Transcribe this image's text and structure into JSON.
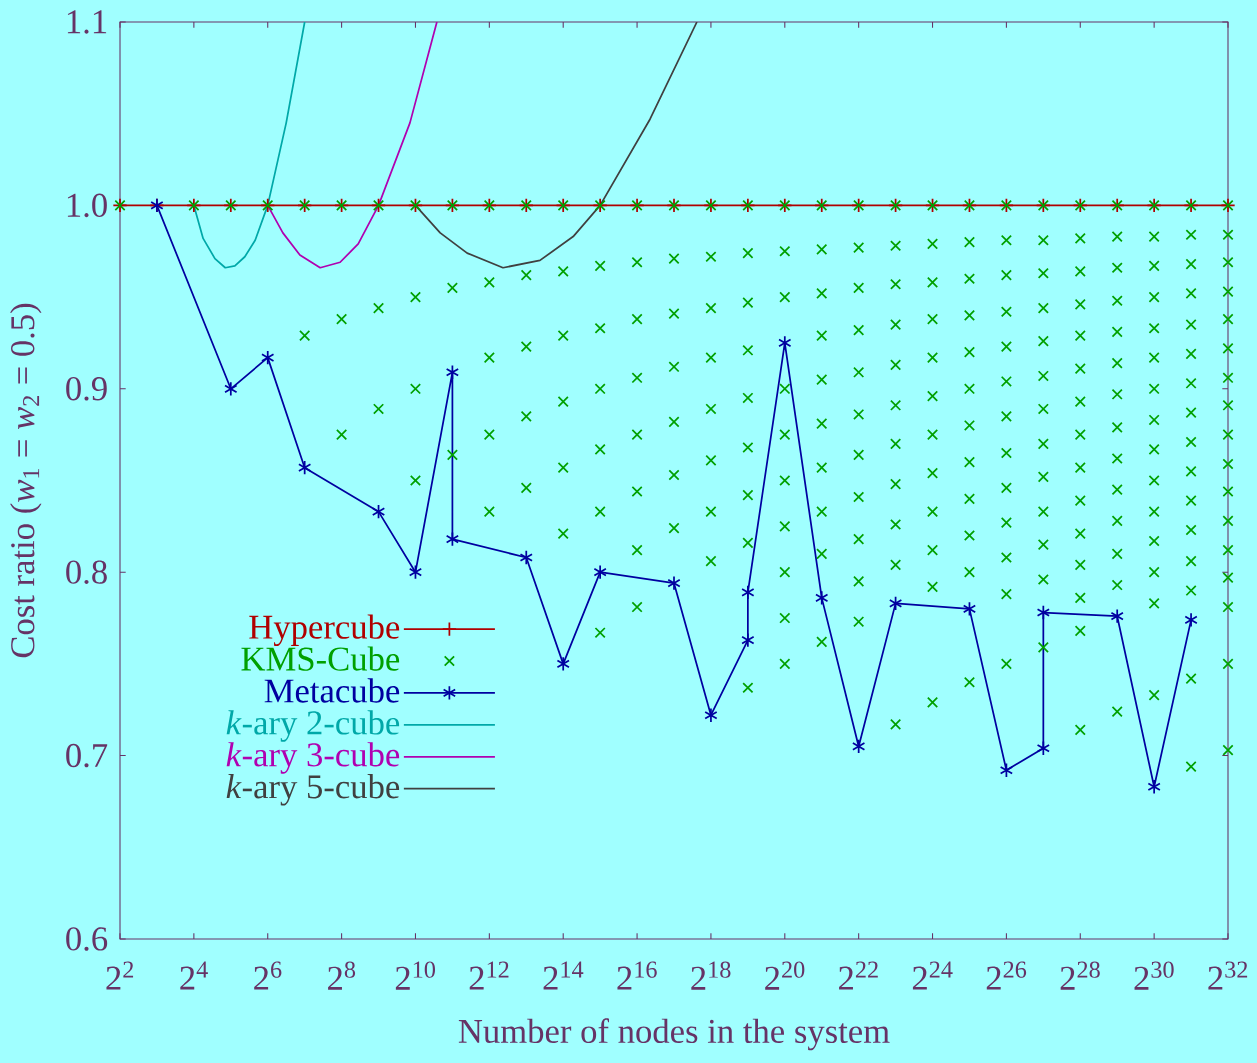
{
  "chart_data": {
    "type": "line",
    "xlabel": "Number of nodes in the system",
    "ylabel": "Cost ratio (*w*$_{1}$ = *w*$_{2}$ = 0.5)",
    "log": "x",
    "xlim": [
      4,
      4294967296
    ],
    "ylim": [
      0.6,
      1.1
    ],
    "xticks": [
      {
        "value": 4,
        "label": "2$^{2}$"
      },
      {
        "value": 16,
        "label": "2$^{4}$"
      },
      {
        "value": 64,
        "label": "2$^{6}$"
      },
      {
        "value": 256,
        "label": "2$^{8}$"
      },
      {
        "value": 1024,
        "label": "2$^{10}$"
      },
      {
        "value": 4096,
        "label": "2$^{12}$"
      },
      {
        "value": 16384,
        "label": "2$^{14}$"
      },
      {
        "value": 65536,
        "label": "2$^{16}$"
      },
      {
        "value": 262144,
        "label": "2$^{18}$"
      },
      {
        "value": 1048576,
        "label": "2$^{20}$"
      },
      {
        "value": 4194304,
        "label": "2$^{22}$"
      },
      {
        "value": 16777216,
        "label": "2$^{24}$"
      },
      {
        "value": 67108864,
        "label": "2$^{26}$"
      },
      {
        "value": 268435456,
        "label": "2$^{28}$"
      },
      {
        "value": 1073741824,
        "label": "2$^{30}$"
      },
      {
        "value": 4294967296,
        "label": "2$^{32}$"
      }
    ],
    "yticks": [
      {
        "value": 0.6,
        "label": "0.6"
      },
      {
        "value": 0.7,
        "label": "0.7"
      },
      {
        "value": 0.8,
        "label": "0.8"
      },
      {
        "value": 0.9,
        "label": "0.9"
      },
      {
        "value": 1,
        "label": "1.0"
      },
      {
        "value": 1.1,
        "label": "1.1"
      }
    ],
    "legend": "bottom left",
    "series": [
      {
        "name": "Hypercube",
        "color": "#b00000",
        "marker": "plus",
        "x": [
          4,
          8,
          16,
          32,
          64,
          128,
          256,
          512,
          1024,
          2048,
          4096,
          8192,
          16384,
          32768,
          65536,
          131072,
          262144,
          524288,
          1048576,
          2097152,
          4194304,
          8388608,
          16777216,
          33554432,
          67108864,
          134217728,
          268435456,
          536870912,
          1073741824,
          2147483648,
          4294967296
        ],
        "values": [
          1,
          1,
          1,
          1,
          1,
          1,
          1,
          1,
          1,
          1,
          1,
          1,
          1,
          1,
          1,
          1,
          1,
          1,
          1,
          1,
          1,
          1,
          1,
          1,
          1,
          1,
          1,
          1,
          1,
          1,
          1
        ]
      },
      {
        "name": "KMS-Cube",
        "color": "#00a000",
        "type": "scatter",
        "marker": "cross",
        "x": [
          4,
          16,
          32,
          64,
          128,
          128,
          256,
          256,
          256,
          512,
          512,
          512,
          1024,
          1024,
          1024,
          1024,
          2048,
          2048,
          2048,
          4096,
          4096,
          4096,
          4096,
          4096,
          8192,
          8192,
          8192,
          8192,
          8192,
          16384,
          16384,
          16384,
          16384,
          16384,
          16384,
          32768,
          32768,
          32768,
          32768,
          32768,
          32768,
          32768,
          65536,
          65536,
          65536,
          65536,
          65536,
          65536,
          65536,
          65536,
          131072,
          131072,
          131072,
          131072,
          131072,
          131072,
          131072,
          262144,
          262144,
          262144,
          262144,
          262144,
          262144,
          262144,
          262144,
          524288,
          524288,
          524288,
          524288,
          524288,
          524288,
          524288,
          524288,
          524288,
          1048576,
          1048576,
          1048576,
          1048576,
          1048576,
          1048576,
          1048576,
          1048576,
          1048576,
          1048576,
          2097152,
          2097152,
          2097152,
          2097152,
          2097152,
          2097152,
          2097152,
          2097152,
          2097152,
          2097152,
          4194304,
          4194304,
          4194304,
          4194304,
          4194304,
          4194304,
          4194304,
          4194304,
          4194304,
          4194304,
          4194304,
          8388608,
          8388608,
          8388608,
          8388608,
          8388608,
          8388608,
          8388608,
          8388608,
          8388608,
          8388608,
          8388608,
          16777216,
          16777216,
          16777216,
          16777216,
          16777216,
          16777216,
          16777216,
          16777216,
          16777216,
          16777216,
          16777216,
          16777216,
          33554432,
          33554432,
          33554432,
          33554432,
          33554432,
          33554432,
          33554432,
          33554432,
          33554432,
          33554432,
          33554432,
          33554432,
          67108864,
          67108864,
          67108864,
          67108864,
          67108864,
          67108864,
          67108864,
          67108864,
          67108864,
          67108864,
          67108864,
          67108864,
          67108864,
          134217728,
          134217728,
          134217728,
          134217728,
          134217728,
          134217728,
          134217728,
          134217728,
          134217728,
          134217728,
          134217728,
          134217728,
          134217728,
          268435456,
          268435456,
          268435456,
          268435456,
          268435456,
          268435456,
          268435456,
          268435456,
          268435456,
          268435456,
          268435456,
          268435456,
          268435456,
          268435456,
          268435456,
          536870912,
          536870912,
          536870912,
          536870912,
          536870912,
          536870912,
          536870912,
          536870912,
          536870912,
          536870912,
          536870912,
          536870912,
          536870912,
          536870912,
          1073741824,
          1073741824,
          1073741824,
          1073741824,
          1073741824,
          1073741824,
          1073741824,
          1073741824,
          1073741824,
          1073741824,
          1073741824,
          1073741824,
          1073741824,
          1073741824,
          1073741824,
          2147483648,
          2147483648,
          2147483648,
          2147483648,
          2147483648,
          2147483648,
          2147483648,
          2147483648,
          2147483648,
          2147483648,
          2147483648,
          2147483648,
          2147483648,
          2147483648,
          2147483648,
          2147483648,
          4294967296,
          4294967296,
          4294967296,
          4294967296,
          4294967296,
          4294967296,
          4294967296,
          4294967296,
          4294967296,
          4294967296,
          4294967296,
          4294967296,
          4294967296,
          4294967296,
          4294967296,
          4294967296,
          4294967296
        ],
        "values": [
          1,
          1,
          1,
          1,
          1,
          0.929,
          1,
          0.938,
          0.875,
          1,
          0.944,
          0.889,
          1,
          0.95,
          0.9,
          0.85,
          1,
          0.955,
          0.864,
          1,
          0.958,
          0.917,
          0.875,
          0.833,
          1,
          0.962,
          0.923,
          0.885,
          0.846,
          1,
          0.964,
          0.929,
          0.893,
          0.857,
          0.821,
          1,
          0.967,
          0.933,
          0.9,
          0.867,
          0.833,
          0.767,
          1,
          0.969,
          0.938,
          0.906,
          0.875,
          0.844,
          0.812,
          0.781,
          1,
          0.971,
          0.941,
          0.912,
          0.882,
          0.853,
          0.824,
          1,
          0.972,
          0.944,
          0.917,
          0.889,
          0.861,
          0.833,
          0.806,
          1,
          0.974,
          0.947,
          0.921,
          0.895,
          0.868,
          0.842,
          0.816,
          0.737,
          1,
          0.975,
          0.95,
          0.9,
          0.875,
          0.85,
          0.825,
          0.8,
          0.775,
          0.75,
          1,
          0.976,
          0.952,
          0.929,
          0.905,
          0.881,
          0.857,
          0.833,
          0.81,
          0.762,
          1,
          0.977,
          0.955,
          0.932,
          0.909,
          0.886,
          0.864,
          0.841,
          0.818,
          0.795,
          0.773,
          1,
          0.978,
          0.957,
          0.935,
          0.913,
          0.891,
          0.87,
          0.848,
          0.826,
          0.804,
          0.717,
          1,
          0.979,
          0.958,
          0.938,
          0.917,
          0.896,
          0.875,
          0.854,
          0.833,
          0.812,
          0.792,
          0.729,
          1,
          0.98,
          0.96,
          0.94,
          0.92,
          0.9,
          0.88,
          0.86,
          0.84,
          0.82,
          0.8,
          0.74,
          1,
          0.981,
          0.962,
          0.942,
          0.923,
          0.904,
          0.885,
          0.865,
          0.846,
          0.827,
          0.808,
          0.788,
          0.75,
          1,
          0.981,
          0.963,
          0.944,
          0.926,
          0.907,
          0.889,
          0.87,
          0.852,
          0.833,
          0.815,
          0.796,
          0.759,
          1,
          0.982,
          0.964,
          0.946,
          0.929,
          0.911,
          0.893,
          0.875,
          0.857,
          0.839,
          0.821,
          0.804,
          0.786,
          0.768,
          0.714,
          1,
          0.983,
          0.966,
          0.948,
          0.931,
          0.914,
          0.897,
          0.879,
          0.862,
          0.845,
          0.828,
          0.81,
          0.793,
          0.724,
          1,
          0.983,
          0.967,
          0.95,
          0.933,
          0.917,
          0.9,
          0.883,
          0.867,
          0.85,
          0.833,
          0.817,
          0.8,
          0.783,
          0.733,
          1,
          0.984,
          0.968,
          0.952,
          0.935,
          0.919,
          0.903,
          0.887,
          0.871,
          0.855,
          0.839,
          0.823,
          0.806,
          0.79,
          0.742,
          0.694,
          1,
          0.984,
          0.969,
          0.953,
          0.938,
          0.922,
          0.906,
          0.891,
          0.875,
          0.859,
          0.844,
          0.828,
          0.812,
          0.797,
          0.781,
          0.75,
          0.703
        ]
      },
      {
        "name": "Metacube",
        "color": "#0000a0",
        "marker": "cross",
        "x": [
          8,
          32,
          64,
          128,
          512,
          1024,
          2048,
          2048,
          8192,
          16384,
          32768,
          131072,
          262144,
          524288,
          524288,
          1048576,
          2097152,
          4194304,
          8388608,
          33554432,
          67108864,
          134217728,
          134217728,
          536870912,
          1073741824,
          2147483648
        ],
        "values": [
          1,
          0.9,
          0.917,
          0.857,
          0.833,
          0.8,
          0.909,
          0.818,
          0.808,
          0.75,
          0.8,
          0.794,
          0.722,
          0.763,
          0.789,
          0.925,
          0.786,
          0.705,
          0.783,
          0.78,
          0.692,
          0.704,
          0.778,
          0.776,
          0.683,
          0.774
        ]
      },
      {
        "name": "*k*-ary 2-cube",
        "color": "#00a8a8",
        "marker": "none",
        "x": [
          16,
          19.03,
          23.75,
          28.84,
          34.53,
          41.64,
          50.56,
          64,
          90.51,
          128
        ],
        "values": [
          1,
          0.982,
          0.971,
          0.966,
          0.967,
          0.972,
          0.981,
          1,
          1.045,
          1.1
        ]
      },
      {
        "name": "*k*-ary 3-cube",
        "color": "#b000b0",
        "marker": "none",
        "x": [
          64,
          85.04,
          116.98,
          171.25,
          249,
          349.7,
          512,
          922.9,
          1530.6
        ],
        "values": [
          1,
          0.985,
          0.973,
          0.966,
          0.969,
          0.979,
          1,
          1.045,
          1.1
        ]
      },
      {
        "name": "*k*-ary 5-cube",
        "color": "#404040",
        "marker": "none",
        "x": [
          1024,
          1629,
          2702,
          5294,
          10588,
          19756,
          32768,
          83532,
          201445
        ],
        "values": [
          1,
          0.985,
          0.974,
          0.966,
          0.97,
          0.983,
          1,
          1.047,
          1.1
        ]
      }
    ]
  }
}
